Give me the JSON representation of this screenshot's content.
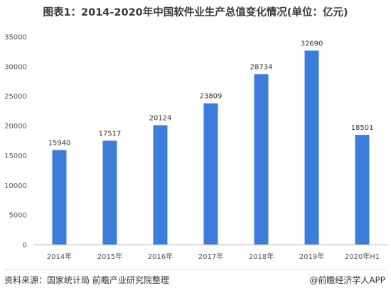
{
  "title": "图表1：2014-2020年中国软件业生产总值变化情况(单位：亿元)",
  "source": "资料来源：国家统计局   前瞻产业研究院整理",
  "credit": "@前瞻经济学人APP",
  "colors": {
    "bar": "#3c7ddb",
    "grid": "#e6e6e6",
    "axis": "#bfbfbf"
  },
  "chart_data": {
    "type": "bar",
    "categories": [
      "2014年",
      "2015年",
      "2016年",
      "2017年",
      "2018年",
      "2019年",
      "2020年H1"
    ],
    "values": [
      15940,
      17517,
      20124,
      23809,
      28734,
      32690,
      18501
    ],
    "ylim": [
      0,
      35000
    ],
    "yticks": [
      0,
      5000,
      10000,
      15000,
      20000,
      25000,
      30000,
      35000
    ],
    "grid": false,
    "legend": "none"
  }
}
